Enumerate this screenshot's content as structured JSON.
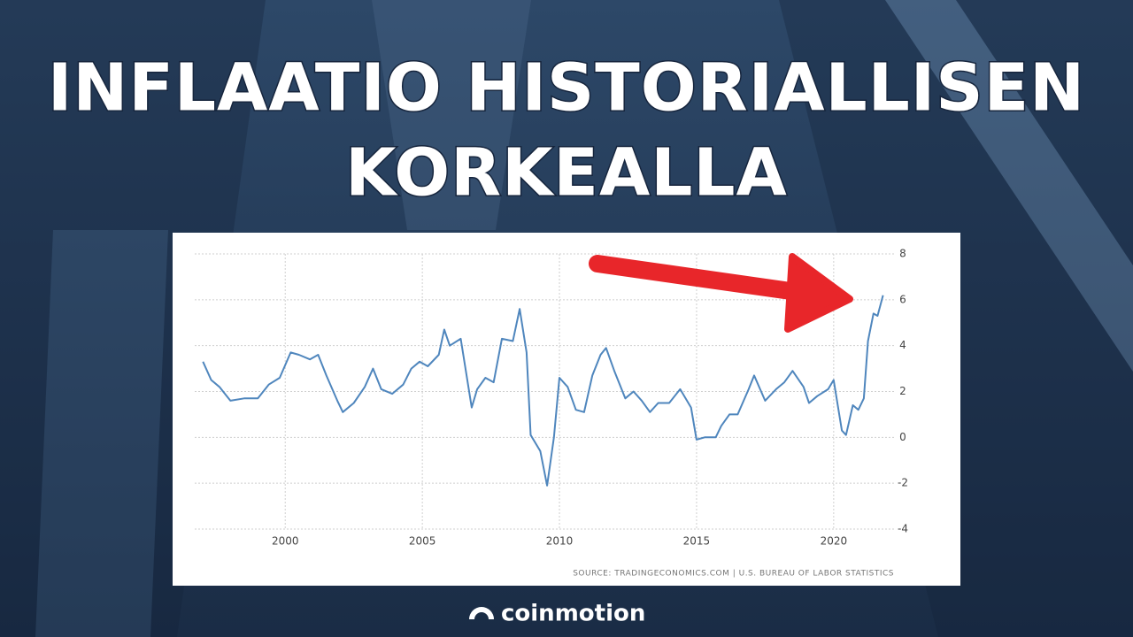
{
  "title_lines": [
    "INFLAATIO HISTORIALLISEN",
    "KORKEALLA"
  ],
  "brand": "coinmotion",
  "chart_data": {
    "type": "line",
    "source": "SOURCE: TRADINGECONOMICS.COM | U.S. BUREAU OF LABOR STATISTICS",
    "x": [
      1997.0,
      1997.3,
      1997.6,
      1998.0,
      1998.5,
      1999.0,
      1999.4,
      1999.8,
      2000.2,
      2000.5,
      2000.9,
      2001.2,
      2001.5,
      2001.9,
      2002.1,
      2002.5,
      2002.9,
      2003.2,
      2003.5,
      2003.9,
      2004.3,
      2004.6,
      2004.9,
      2005.2,
      2005.6,
      2005.8,
      2006.0,
      2006.4,
      2006.8,
      2007.0,
      2007.3,
      2007.6,
      2007.9,
      2008.3,
      2008.55,
      2008.8,
      2008.95,
      2009.3,
      2009.55,
      2009.8,
      2010.0,
      2010.3,
      2010.6,
      2010.9,
      2011.2,
      2011.5,
      2011.7,
      2012.0,
      2012.4,
      2012.7,
      2013.0,
      2013.3,
      2013.6,
      2014.0,
      2014.4,
      2014.8,
      2015.0,
      2015.3,
      2015.7,
      2015.9,
      2016.2,
      2016.5,
      2016.9,
      2017.1,
      2017.5,
      2017.9,
      2018.2,
      2018.5,
      2018.9,
      2019.1,
      2019.4,
      2019.8,
      2020.0,
      2020.3,
      2020.45,
      2020.7,
      2020.9,
      2021.1,
      2021.25,
      2021.45,
      2021.6,
      2021.8
    ],
    "series": [
      {
        "color": "#4f86bd",
        "values": [
          3.3,
          2.5,
          2.2,
          1.6,
          1.7,
          1.7,
          2.3,
          2.6,
          3.7,
          3.6,
          3.4,
          3.6,
          2.7,
          1.6,
          1.1,
          1.5,
          2.2,
          3.0,
          2.1,
          1.9,
          2.3,
          3.0,
          3.3,
          3.1,
          3.6,
          4.7,
          4.0,
          4.3,
          1.3,
          2.1,
          2.6,
          2.4,
          4.3,
          4.2,
          5.6,
          3.7,
          0.1,
          -0.6,
          -2.1,
          0.0,
          2.6,
          2.2,
          1.2,
          1.1,
          2.7,
          3.6,
          3.9,
          2.9,
          1.7,
          2.0,
          1.6,
          1.1,
          1.5,
          1.5,
          2.1,
          1.3,
          -0.1,
          0.0,
          0.0,
          0.5,
          1.0,
          1.0,
          2.1,
          2.7,
          1.6,
          2.1,
          2.4,
          2.9,
          2.2,
          1.5,
          1.8,
          2.1,
          2.5,
          0.3,
          0.1,
          1.4,
          1.2,
          1.7,
          4.2,
          5.4,
          5.3,
          6.2
        ]
      }
    ],
    "xlim": [
      1996.7,
      2022.2
    ],
    "xticks": [
      2000,
      2005,
      2010,
      2015,
      2020
    ],
    "ylim": [
      -4,
      8
    ],
    "yticks": [
      -4,
      -2,
      0,
      2,
      4,
      6,
      8
    ],
    "grid": true
  }
}
